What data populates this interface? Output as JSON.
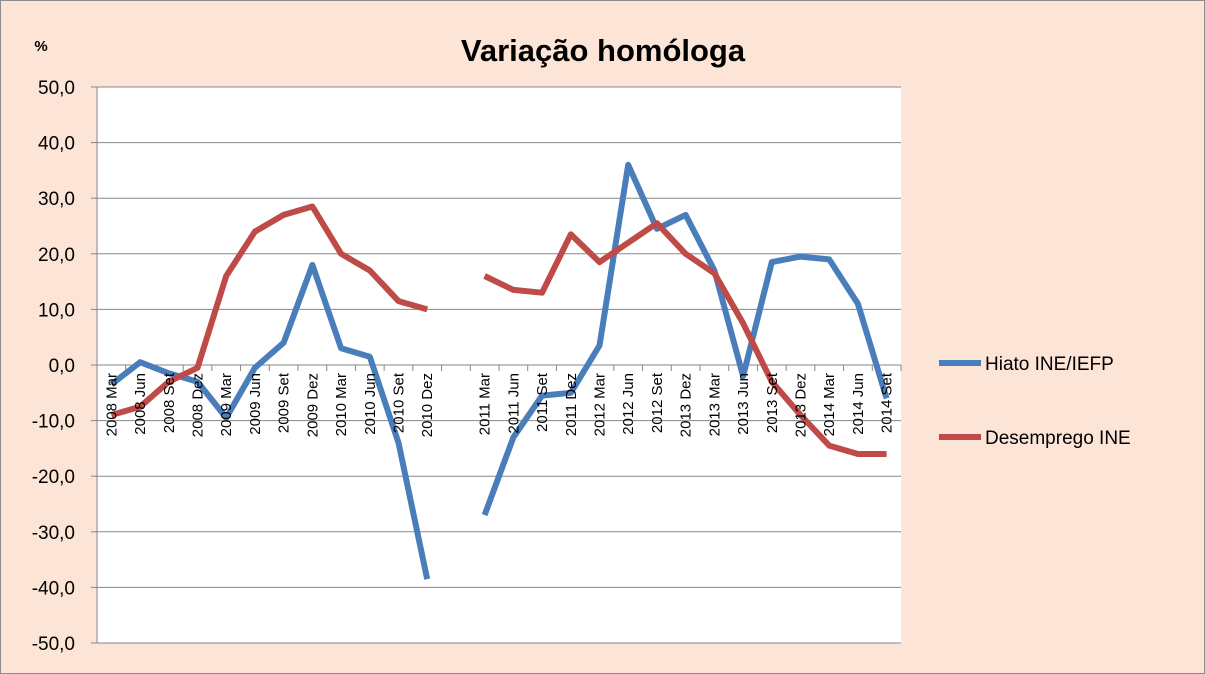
{
  "chart_data": {
    "type": "line",
    "title": "Variação homóloga",
    "ylabel": "%",
    "ylim": [
      -50,
      50
    ],
    "yticks": [
      "50,0",
      "40,0",
      "30,0",
      "20,0",
      "10,0",
      "0,0",
      "-10,0",
      "-20,0",
      "-30,0",
      "-40,0",
      "-50,0"
    ],
    "grid": true,
    "legend_position": "right",
    "categories": [
      "2008 Mar",
      "2008 Jun",
      "2008 Set",
      "2008 Dez",
      "2009 Mar",
      "2009 Jun",
      "2009 Set",
      "2009 Dez",
      "2010 Mar",
      "2010 Jun",
      "2010 Set",
      "2010 Dez",
      "",
      "2011 Mar",
      "2011 Jun",
      "2011 Set",
      "2011 Dez",
      "2012 Mar",
      "2012 Jun",
      "2012 Set",
      "2013 Dez",
      "2013 Mar",
      "2013 Jun",
      "2013 Set",
      "2013 Dez",
      "2014 Mar",
      "2014 Jun",
      "2014 Set"
    ],
    "series": [
      {
        "name": "Hiato INE/IEFP",
        "color": "#4a7ebb",
        "values": [
          -3.5,
          0.5,
          -1.5,
          -3,
          -9.5,
          -0.5,
          4,
          18,
          3,
          1.5,
          -14,
          -38.5,
          null,
          -27,
          -13,
          -5.5,
          -5,
          3.5,
          36,
          24.5,
          27,
          17,
          -2,
          18.5,
          19.5,
          19,
          11,
          -6
        ]
      },
      {
        "name": "Desemprego INE",
        "color": "#be4b48",
        "values": [
          -9,
          -7.5,
          -3,
          -0.5,
          16,
          24,
          27,
          28.5,
          20,
          17,
          11.5,
          10,
          null,
          16,
          13.5,
          13,
          23.5,
          18.5,
          22,
          25.5,
          20,
          16.5,
          7.5,
          -3,
          -9,
          -14.5,
          -16,
          -16
        ]
      }
    ]
  }
}
